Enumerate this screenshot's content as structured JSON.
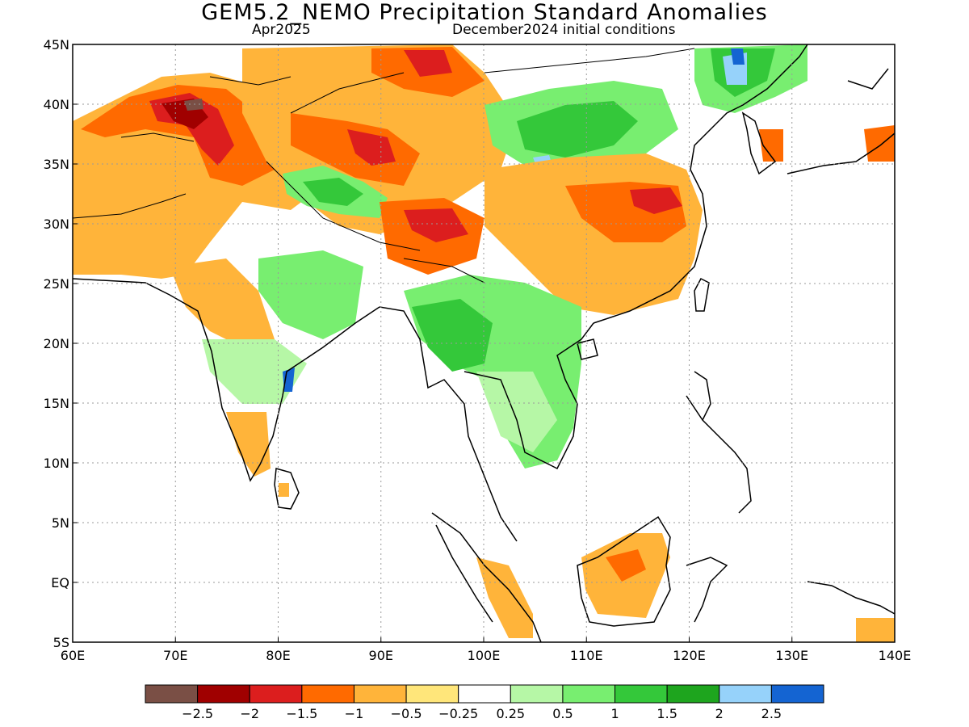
{
  "header": {
    "title": "GEM5.2_NEMO Precipitation Standard Anomalies",
    "subtitle_left": "Apr2025",
    "subtitle_right": "December2024 initial conditions"
  },
  "axes": {
    "x_ticks": [
      "60E",
      "70E",
      "80E",
      "90E",
      "100E",
      "110E",
      "120E",
      "130E",
      "140E"
    ],
    "y_ticks": [
      "45N",
      "40N",
      "35N",
      "30N",
      "25N",
      "20N",
      "15N",
      "10N",
      "5N",
      "EQ",
      "5S"
    ],
    "lon_range": [
      60,
      140
    ],
    "lat_range": [
      -5,
      45
    ],
    "grid": true
  },
  "colorbar": {
    "colors": [
      "#7a4f45",
      "#a00000",
      "#dc1e1e",
      "#ff6a00",
      "#ffb43a",
      "#ffe67a",
      "#ffffff",
      "#b6f7a6",
      "#78ee70",
      "#34c83a",
      "#1ea51e",
      "#96d2fa",
      "#1464d2"
    ],
    "labels": [
      "-2.5",
      "-2",
      "-1.5",
      "-1",
      "-0.5",
      "-0.25",
      "0.25",
      "0.5",
      "1",
      "1.5",
      "2",
      "2.5"
    ]
  },
  "legend_colors": {
    "strong_dry": "#a00000",
    "dry": "#ff6a00",
    "slightly_dry": "#ffb43a",
    "wet": "#78ee70",
    "strong_wet": "#1ea51e",
    "very_wet": "#96d2fa"
  }
}
